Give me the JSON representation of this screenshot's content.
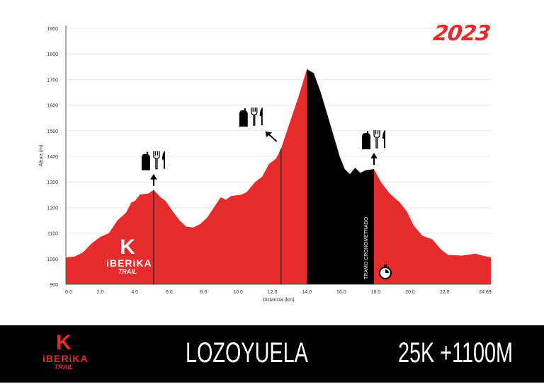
{
  "year": "2023",
  "footer": {
    "location": "LOZOYUELA",
    "stats": "25K +1100M"
  },
  "logo": {
    "mark": "K",
    "name": "iBERiKA",
    "sub": "TRAIL"
  },
  "colors": {
    "profile": "#e52b2b",
    "timed_section": "#000000",
    "footer_bg": "#000000"
  },
  "chart_data": {
    "type": "area",
    "title": "",
    "xlabel": "Distancia (km)",
    "ylabel": "Altura (m)",
    "xlim": [
      0,
      24.69
    ],
    "ylim": [
      900,
      1900
    ],
    "grid": true,
    "xticks": [
      "0.0",
      "2.0",
      "4.0",
      "6.0",
      "8.0",
      "10.0",
      "12.0",
      "14.0",
      "16.0",
      "18.0",
      "20.0",
      "22.0",
      "24.69"
    ],
    "xtick_values": [
      0,
      2,
      4,
      6,
      8,
      10,
      12,
      14,
      16,
      18,
      20,
      22,
      24.69
    ],
    "yticks": [
      900,
      1000,
      1100,
      1200,
      1300,
      1400,
      1500,
      1600,
      1700,
      1800,
      1900
    ],
    "profile": [
      [
        0,
        1005
      ],
      [
        0.5,
        1008
      ],
      [
        1.0,
        1025
      ],
      [
        1.5,
        1060
      ],
      [
        2.0,
        1085
      ],
      [
        2.5,
        1100
      ],
      [
        3.0,
        1150
      ],
      [
        3.5,
        1180
      ],
      [
        3.8,
        1220
      ],
      [
        4.0,
        1225
      ],
      [
        4.3,
        1250
      ],
      [
        4.8,
        1255
      ],
      [
        5.1,
        1268
      ],
      [
        5.5,
        1240
      ],
      [
        5.8,
        1225
      ],
      [
        6.2,
        1185
      ],
      [
        6.6,
        1150
      ],
      [
        7.0,
        1125
      ],
      [
        7.4,
        1122
      ],
      [
        7.8,
        1135
      ],
      [
        8.2,
        1160
      ],
      [
        8.6,
        1200
      ],
      [
        9.0,
        1240
      ],
      [
        9.3,
        1230
      ],
      [
        9.6,
        1245
      ],
      [
        10.2,
        1250
      ],
      [
        10.5,
        1260
      ],
      [
        11.0,
        1300
      ],
      [
        11.4,
        1320
      ],
      [
        11.8,
        1370
      ],
      [
        12.2,
        1390
      ],
      [
        12.5,
        1430
      ],
      [
        13.0,
        1530
      ],
      [
        13.5,
        1630
      ],
      [
        14.0,
        1740
      ],
      [
        14.4,
        1725
      ],
      [
        14.8,
        1650
      ],
      [
        15.2,
        1560
      ],
      [
        15.6,
        1470
      ],
      [
        15.9,
        1400
      ],
      [
        16.2,
        1350
      ],
      [
        16.5,
        1330
      ],
      [
        16.8,
        1355
      ],
      [
        17.1,
        1335
      ],
      [
        17.4,
        1345
      ],
      [
        17.9,
        1350
      ],
      [
        18.3,
        1300
      ],
      [
        18.8,
        1255
      ],
      [
        19.4,
        1220
      ],
      [
        19.8,
        1185
      ],
      [
        20.2,
        1130
      ],
      [
        20.7,
        1090
      ],
      [
        21.3,
        1075
      ],
      [
        21.8,
        1035
      ],
      [
        22.2,
        1015
      ],
      [
        23.0,
        1012
      ],
      [
        23.8,
        1020
      ],
      [
        24.2,
        1012
      ],
      [
        24.69,
        1005
      ]
    ],
    "timed_section": {
      "label": "TRAMO CRONOMETRADO",
      "from": 14.0,
      "to": 17.9
    },
    "aid_stations": [
      {
        "km": 5.1,
        "icons": [
          "water-bottle",
          "fork",
          "knife"
        ],
        "arrow": "up"
      },
      {
        "km": 12.5,
        "icons": [
          "water-bottle",
          "fork",
          "knife"
        ],
        "arrow": "up-left"
      },
      {
        "km": 17.9,
        "icons": [
          "water-bottle",
          "fork",
          "knife"
        ],
        "arrow": "up"
      }
    ]
  }
}
